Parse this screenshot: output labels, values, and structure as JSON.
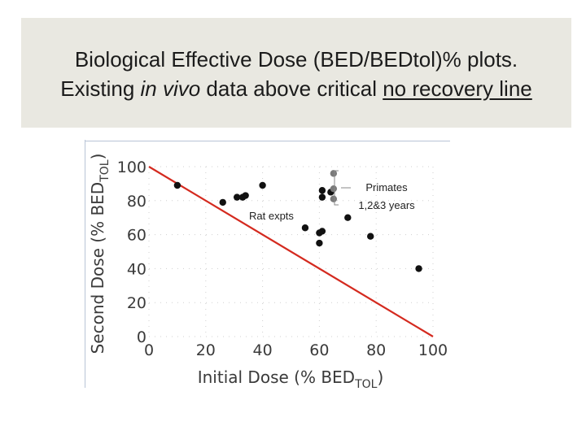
{
  "slide": {
    "title_line1": "Biological Effective Dose (BED/BEDtol)% plots.",
    "title_line2_before": "Existing ",
    "title_line2_italic": "in vivo",
    "title_line2_middle": " data above critical ",
    "title_line2_underlined": "no recovery line"
  },
  "chart_data": {
    "type": "scatter",
    "title": "",
    "xlabel": "Initial Dose (% BED",
    "xlabel_sub": "TOL",
    "xlabel_close": ")",
    "ylabel": "Second Dose (% BED",
    "ylabel_sub": "TOL",
    "ylabel_close": ")",
    "xlim": [
      0,
      100
    ],
    "ylim": [
      0,
      100
    ],
    "xticks": [
      0,
      20,
      40,
      60,
      80,
      100
    ],
    "yticks": [
      0,
      20,
      40,
      60,
      80,
      100
    ],
    "line": {
      "name": "no recovery line",
      "x": [
        0,
        100
      ],
      "y": [
        100,
        0
      ],
      "color": "#d42a1f"
    },
    "series": [
      {
        "name": "in vivo data",
        "color": "#111111",
        "points": [
          [
            10,
            89
          ],
          [
            26,
            79
          ],
          [
            31,
            82
          ],
          [
            33,
            82
          ],
          [
            34,
            83
          ],
          [
            40,
            89
          ],
          [
            55,
            64
          ],
          [
            60,
            55
          ],
          [
            60,
            61
          ],
          [
            61,
            62
          ],
          [
            61,
            86
          ],
          [
            61,
            82
          ],
          [
            64,
            85
          ],
          [
            70,
            70
          ],
          [
            78,
            59
          ],
          [
            95,
            40
          ]
        ]
      },
      {
        "name": "Primates",
        "color": "#7a7a7a",
        "points": [
          [
            65,
            96
          ],
          [
            65,
            87
          ],
          [
            65,
            81
          ]
        ]
      }
    ],
    "annotations": {
      "rat": "Rat expts",
      "primates_line1": "Primates",
      "primates_line2": "1,2&3 years"
    }
  }
}
